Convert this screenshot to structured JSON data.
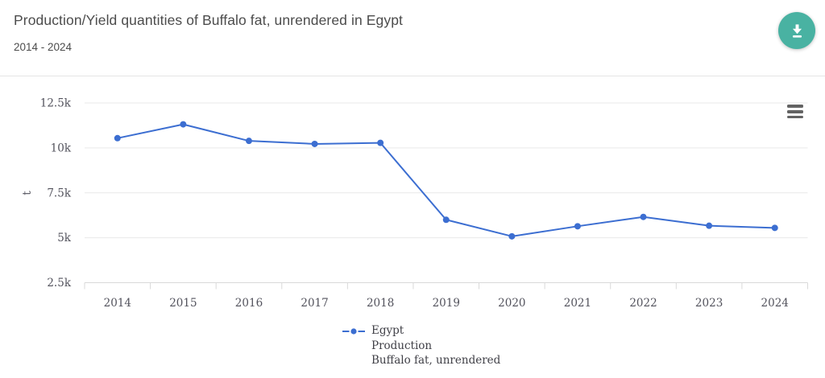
{
  "header": {
    "title": "Production/Yield quantities of Buffalo fat, unrendered in Egypt",
    "subtitle": "2014 - 2024",
    "download_button_color": "#49b2a2",
    "download_icon": "download-icon"
  },
  "chart": {
    "menu_icon": "hamburger-menu-icon",
    "unit_label": "t",
    "y_tick_labels": [
      "12.5k",
      "10k",
      "7.5k",
      "5k",
      "2.5k"
    ],
    "legend": {
      "lines": [
        "Egypt",
        "Production",
        "Buffalo fat, unrendered"
      ],
      "marker": "line-dot-marker-icon"
    },
    "colors": {
      "series_blue": "#3c6ed1",
      "grid_line": "#e9e9e9",
      "axis_line": "#d9d9d9",
      "axis_text": "#52525c",
      "unit_text": "#6b6b6b"
    }
  },
  "chart_data": {
    "type": "line",
    "title": "Production/Yield quantities of Buffalo fat, unrendered in Egypt",
    "subtitle": "2014 - 2024",
    "x": [
      2014,
      2015,
      2016,
      2017,
      2018,
      2019,
      2020,
      2021,
      2022,
      2023,
      2024
    ],
    "series": [
      {
        "name": "Egypt | Production | Buffalo fat, unrendered",
        "values": [
          10540,
          11310,
          10390,
          10220,
          10280,
          6000,
          5080,
          5640,
          6160,
          5670,
          5550
        ]
      }
    ],
    "xlabel": "",
    "ylabel": "t",
    "ylim": [
      2500,
      12500
    ],
    "y_ticks": [
      2500,
      5000,
      7500,
      10000,
      12500
    ],
    "grid": true,
    "legend_position": "bottom"
  }
}
